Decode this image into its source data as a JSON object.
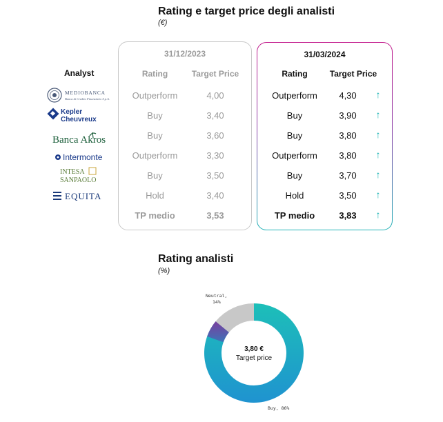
{
  "header": {
    "title": "Rating e target price degli analisti",
    "subtitle": "(€)"
  },
  "analyst_label": "Analyst",
  "logos": [
    {
      "name": "MEDIOBANCA",
      "tagline": "Banca di Credito Finanziario S.p.A.",
      "icon": "mediobanca-seal",
      "color": "#4a5a78"
    },
    {
      "name_line1": "Kepler",
      "name_line2": "Cheuvreux",
      "icon": "kepler-diamond",
      "color": "#1a3a8a"
    },
    {
      "name": "Banca Akros",
      "icon": "palm-tree",
      "color": "#1b5e3a"
    },
    {
      "name": "Intermonte",
      "icon": "intermonte-dot",
      "color": "#1a3a8a"
    },
    {
      "name_line1": "INTESA",
      "name_line2": "SANPAOLO",
      "icon": "intesa-mark",
      "color": "#5b7d3a"
    },
    {
      "name": "EQUITA",
      "icon": "equita-lines",
      "color": "#1a3a7a"
    }
  ],
  "old_panel": {
    "date": "31/12/2023",
    "headers": {
      "rating": "Rating",
      "tp": "Target Price"
    },
    "rows": [
      {
        "rating": "Outperform",
        "tp": "4,00"
      },
      {
        "rating": "Buy",
        "tp": "3,40"
      },
      {
        "rating": "Buy",
        "tp": "3,60"
      },
      {
        "rating": "Outperform",
        "tp": "3,30"
      },
      {
        "rating": "Buy",
        "tp": "3,50"
      },
      {
        "rating": "Hold",
        "tp": "3,40"
      }
    ],
    "summary": {
      "label": "TP medio",
      "value": "3,53"
    }
  },
  "new_panel": {
    "date": "31/03/2024",
    "headers": {
      "rating": "Rating",
      "tp": "Target Price"
    },
    "rows": [
      {
        "rating": "Outperform",
        "tp": "4,30",
        "trend": "up"
      },
      {
        "rating": "Buy",
        "tp": "3,90",
        "trend": "up"
      },
      {
        "rating": "Buy",
        "tp": "3,80",
        "trend": "up"
      },
      {
        "rating": "Outperform",
        "tp": "3,80",
        "trend": "up"
      },
      {
        "rating": "Buy",
        "tp": "3,70",
        "trend": "up"
      },
      {
        "rating": "Hold",
        "tp": "3,50",
        "trend": "up"
      }
    ],
    "summary": {
      "label": "TP medio",
      "value": "3,83",
      "trend": "up"
    },
    "arrow_glyph": "↑",
    "arrow_color": "#16b2b3",
    "border_colors": [
      "#c2188b",
      "#8e3fa8",
      "#1fb3b7"
    ]
  },
  "chart_data": {
    "type": "pie",
    "title": "Rating analisti",
    "subtitle": "(%)",
    "slices": [
      {
        "label": "Buy, 86%",
        "value": 86,
        "color_start": "#1dbfb8",
        "color_end": "#1f93d0"
      },
      {
        "label": "Neutral, 14%",
        "value": 14,
        "color": "#c8c8c8"
      }
    ],
    "accent_slice": {
      "color": "#7a3e9d"
    },
    "center_value": "3,80 €",
    "center_label": "Target price"
  }
}
